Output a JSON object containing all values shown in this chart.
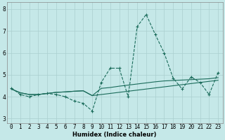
{
  "xlabel": "Humidex (Indice chaleur)",
  "background_color": "#c5e8e8",
  "grid_color": "#aacfcf",
  "line_color": "#1a6b5a",
  "x_ticks": [
    0,
    1,
    2,
    3,
    4,
    5,
    6,
    7,
    8,
    9,
    10,
    11,
    12,
    13,
    14,
    15,
    16,
    17,
    18,
    19,
    20,
    21,
    22,
    23
  ],
  "ylim": [
    2.8,
    8.3
  ],
  "xlim": [
    -0.5,
    23.5
  ],
  "line1_x": [
    0,
    1,
    2,
    3,
    4,
    5,
    6,
    7,
    8,
    9,
    10,
    11,
    12,
    13,
    14,
    15,
    16,
    17,
    18,
    19,
    20,
    21,
    22,
    23
  ],
  "line1_y": [
    4.4,
    4.1,
    4.0,
    4.1,
    4.15,
    4.1,
    4.0,
    3.8,
    3.7,
    3.35,
    4.65,
    5.3,
    5.3,
    4.0,
    7.2,
    7.75,
    6.85,
    6.0,
    4.85,
    4.35,
    4.9,
    4.65,
    4.1,
    5.1
  ],
  "line2_x": [
    0,
    1,
    2,
    3,
    4,
    5,
    6,
    7,
    8,
    9,
    10,
    11,
    12,
    13,
    14,
    15,
    16,
    17,
    18,
    19,
    20,
    21,
    22,
    23
  ],
  "line2_y": [
    4.35,
    4.18,
    4.1,
    4.1,
    4.15,
    4.2,
    4.22,
    4.25,
    4.27,
    4.05,
    4.38,
    4.42,
    4.48,
    4.53,
    4.58,
    4.63,
    4.68,
    4.72,
    4.74,
    4.76,
    4.78,
    4.8,
    4.82,
    4.87
  ],
  "line3_x": [
    0,
    1,
    2,
    3,
    4,
    5,
    6,
    7,
    8,
    9,
    10,
    11,
    12,
    13,
    14,
    15,
    16,
    17,
    18,
    19,
    20,
    21,
    22,
    23
  ],
  "line3_y": [
    4.35,
    4.18,
    4.1,
    4.1,
    4.15,
    4.2,
    4.22,
    4.25,
    4.27,
    4.05,
    4.1,
    4.15,
    4.2,
    4.25,
    4.3,
    4.35,
    4.4,
    4.45,
    4.5,
    4.55,
    4.6,
    4.65,
    4.7,
    4.75
  ]
}
